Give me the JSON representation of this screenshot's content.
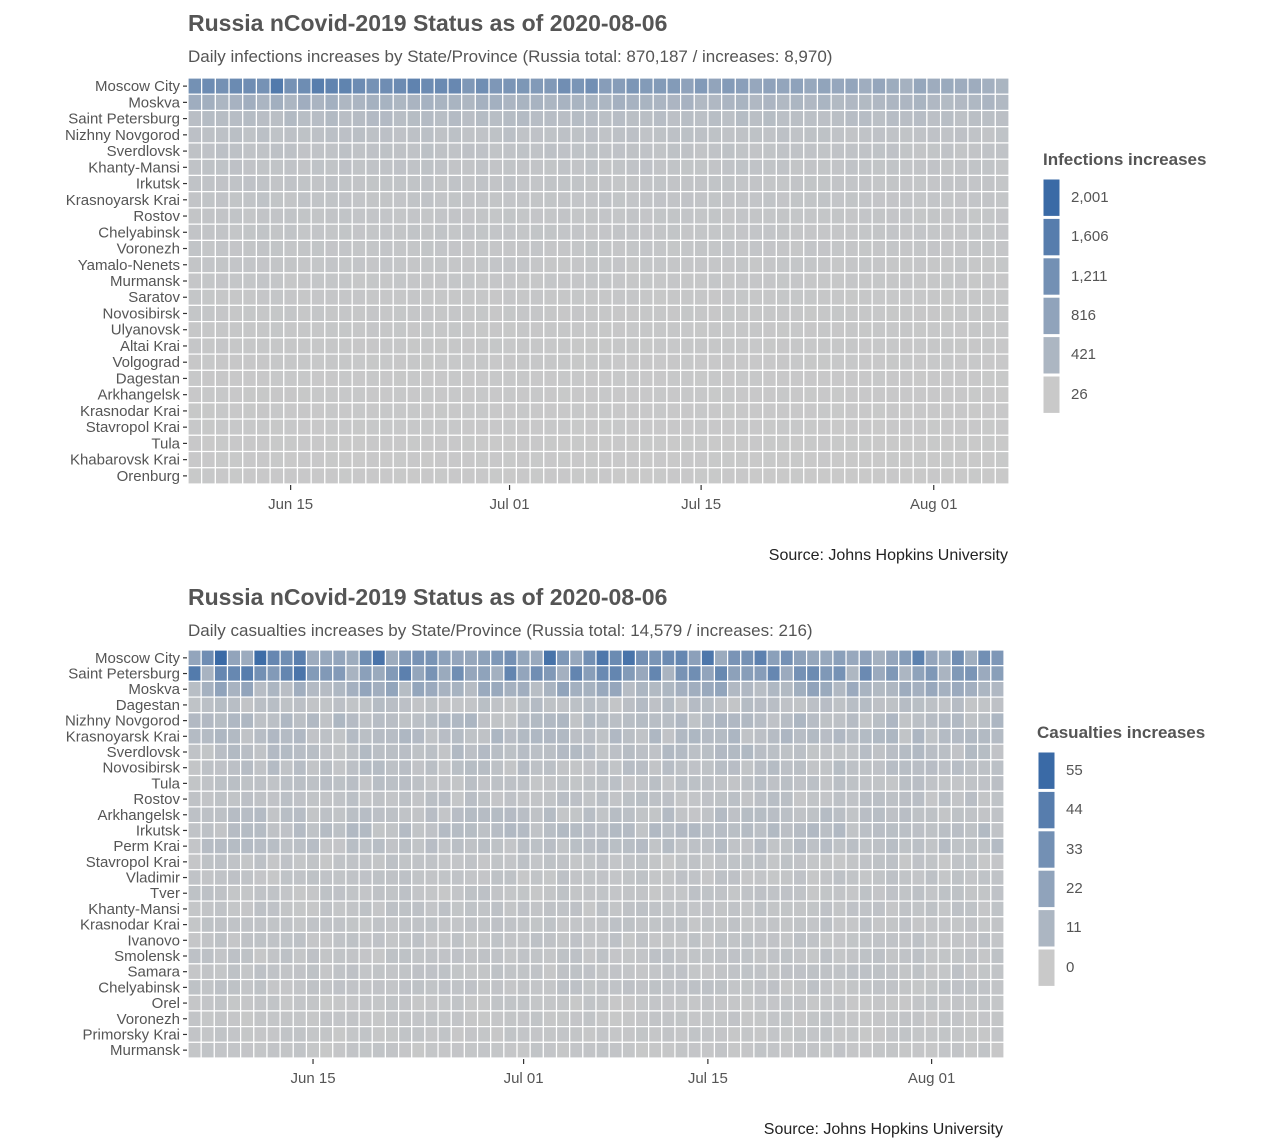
{
  "colors": {
    "low": "#c9c9c9",
    "high": "#3a6aa6",
    "tile_border": "#ffffff",
    "tick": "#333333"
  },
  "chart_data": [
    {
      "type": "heatmap",
      "title": "Russia nCovid-2019 Status as of 2020-08-06",
      "subtitle": "Daily infections increases by State/Province (Russia total: 870,187 / increases: 8,970)",
      "xlabel": "",
      "ylabel": "",
      "x_range": [
        "2020-06-08",
        "2020-08-06"
      ],
      "x_ticks": [
        {
          "date": "2020-06-15",
          "label": "Jun 15"
        },
        {
          "date": "2020-07-01",
          "label": "Jul 01"
        },
        {
          "date": "2020-07-15",
          "label": "Jul 15"
        },
        {
          "date": "2020-08-01",
          "label": "Aug 01"
        }
      ],
      "rows": [
        "Moscow City",
        "Moskva",
        "Saint Petersburg",
        "Nizhny Novgorod",
        "Sverdlovsk",
        "Khanty-Mansi",
        "Irkutsk",
        "Krasnoyarsk Krai",
        "Rostov",
        "Chelyabinsk",
        "Voronezh",
        "Yamalo-Nenets",
        "Murmansk",
        "Saratov",
        "Novosibirsk",
        "Ulyanovsk",
        "Altai Krai",
        "Volgograd",
        "Dagestan",
        "Arkhangelsk",
        "Krasnodar Krai",
        "Stavropol Krai",
        "Tula",
        "Khabarovsk Krai",
        "Orenburg"
      ],
      "legend": {
        "title": "Infections increases",
        "placement": "right",
        "breaks": [
          "2,001",
          "1,606",
          "1,211",
          "816",
          "421",
          "26"
        ],
        "min": 26,
        "max": 2001
      },
      "approx_level_by_row": [
        1500,
        520,
        300,
        200,
        180,
        160,
        140,
        140,
        120,
        120,
        110,
        100,
        90,
        80,
        80,
        70,
        70,
        60,
        50,
        50,
        50,
        50,
        40,
        40,
        40
      ],
      "source": "Source: Johns Hopkins University"
    },
    {
      "type": "heatmap",
      "title": "Russia nCovid-2019 Status as of 2020-08-06",
      "subtitle": "Daily casualties increases by State/Province (Russia total: 14,579 / increases: 216)",
      "xlabel": "",
      "ylabel": "",
      "x_range": [
        "2020-06-06",
        "2020-08-06"
      ],
      "x_ticks": [
        {
          "date": "2020-06-15",
          "label": "Jun 15"
        },
        {
          "date": "2020-07-01",
          "label": "Jul 01"
        },
        {
          "date": "2020-07-15",
          "label": "Jul 15"
        },
        {
          "date": "2020-08-01",
          "label": "Aug 01"
        }
      ],
      "rows": [
        "Moscow City",
        "Saint Petersburg",
        "Moskva",
        "Dagestan",
        "Nizhny Novgorod",
        "Krasnoyarsk Krai",
        "Sverdlovsk",
        "Novosibirsk",
        "Tula",
        "Rostov",
        "Arkhangelsk",
        "Irkutsk",
        "Perm Krai",
        "Stavropol Krai",
        "Vladimir",
        "Tver",
        "Khanty-Mansi",
        "Krasnodar Krai",
        "Ivanovo",
        "Smolensk",
        "Samara",
        "Chelyabinsk",
        "Orel",
        "Voronezh",
        "Primorsky Krai",
        "Murmansk"
      ],
      "legend": {
        "title": "Casualties increases",
        "placement": "right",
        "breaks": [
          "55",
          "44",
          "33",
          "22",
          "11",
          "0"
        ],
        "min": 0,
        "max": 55
      },
      "approx_level_by_row": [
        38,
        32,
        14,
        5,
        7,
        7,
        6,
        5,
        4,
        4,
        5,
        6,
        5,
        3,
        3,
        3,
        3,
        3,
        3,
        3,
        3,
        3,
        2,
        2,
        2,
        2
      ],
      "source": "Source: Johns Hopkins University"
    }
  ]
}
